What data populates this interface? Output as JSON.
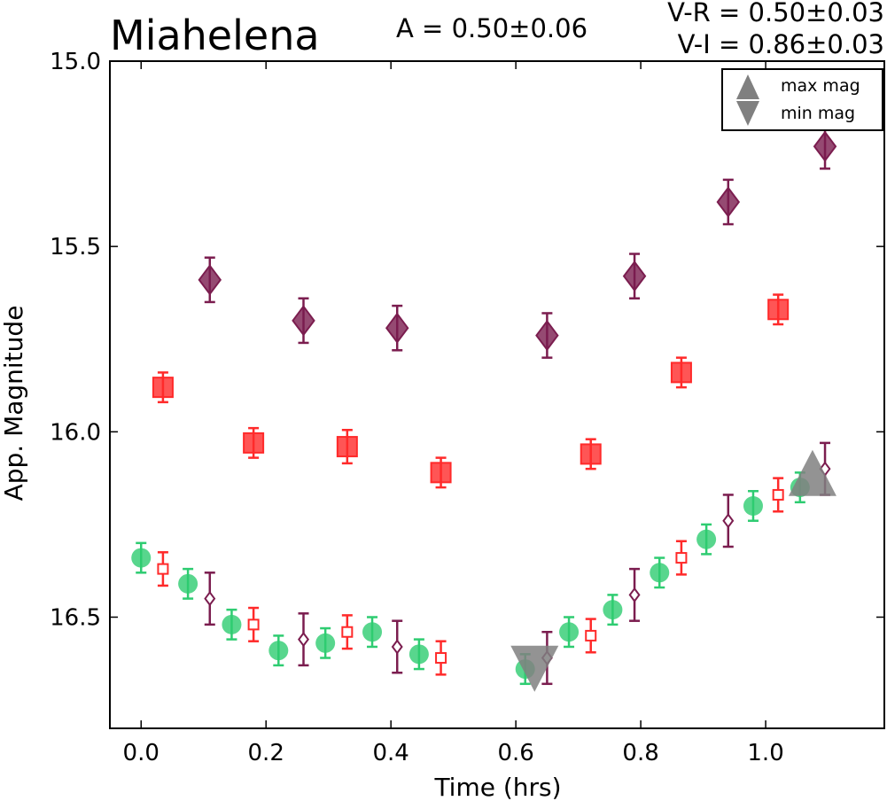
{
  "chart_data": {
    "type": "scatter",
    "title": "Miahelena",
    "annotations": {
      "amplitude": "A  = 0.50±0.06",
      "v_r": "V-R = 0.50±0.03",
      "v_i": "V-I  = 0.86±0.03"
    },
    "xlabel": "Time (hrs)",
    "ylabel": "App. Magnitude",
    "xlim": [
      -0.05,
      1.19
    ],
    "ylim": [
      16.8,
      15.0
    ],
    "y_inverted": true,
    "xticks": [
      0.0,
      0.2,
      0.4,
      0.6,
      0.8,
      1.0
    ],
    "xtick_labels": [
      "0.0",
      "0.2",
      "0.4",
      "0.6",
      "0.8",
      "1.0"
    ],
    "yticks": [
      15.0,
      15.5,
      16.0,
      16.5
    ],
    "ytick_labels": [
      "15.0",
      "15.5",
      "16.0",
      "16.5"
    ],
    "grid": false,
    "legend_position": "top-right",
    "legend": [
      {
        "label": "max mag",
        "marker": "triangle-up"
      },
      {
        "label": "min mag",
        "marker": "triangle-down"
      }
    ],
    "colors": {
      "green": "#2ecc71",
      "red": "#ff2a2a",
      "purple": "#7b1d4f",
      "gray": "#808080"
    },
    "series": [
      {
        "marker": "diamond",
        "filled": true,
        "color": "#7b1d4f",
        "points": [
          [
            0.11,
            15.59,
            0.06
          ],
          [
            0.26,
            15.7,
            0.06
          ],
          [
            0.41,
            15.72,
            0.06
          ],
          [
            0.65,
            15.74,
            0.06
          ],
          [
            0.79,
            15.58,
            0.06
          ],
          [
            0.94,
            15.38,
            0.06
          ],
          [
            1.095,
            15.23,
            0.06
          ]
        ]
      },
      {
        "marker": "square",
        "filled": true,
        "color": "#ff2a2a",
        "points": [
          [
            0.035,
            15.88,
            0.04
          ],
          [
            0.18,
            16.03,
            0.04
          ],
          [
            0.33,
            16.04,
            0.045
          ],
          [
            0.48,
            16.11,
            0.04
          ],
          [
            0.72,
            16.06,
            0.04
          ],
          [
            0.865,
            15.84,
            0.04
          ],
          [
            1.02,
            15.67,
            0.04
          ]
        ]
      },
      {
        "marker": "circle",
        "filled": true,
        "color": "#2ecc71",
        "points": [
          [
            0.0,
            16.34,
            0.04
          ],
          [
            0.075,
            16.41,
            0.04
          ],
          [
            0.145,
            16.52,
            0.04
          ],
          [
            0.22,
            16.59,
            0.04
          ],
          [
            0.295,
            16.57,
            0.04
          ],
          [
            0.37,
            16.54,
            0.04
          ],
          [
            0.445,
            16.6,
            0.04
          ],
          [
            0.615,
            16.64,
            0.04
          ],
          [
            0.685,
            16.54,
            0.04
          ],
          [
            0.755,
            16.48,
            0.04
          ],
          [
            0.83,
            16.38,
            0.04
          ],
          [
            0.905,
            16.29,
            0.04
          ],
          [
            0.98,
            16.2,
            0.04
          ],
          [
            1.055,
            16.15,
            0.04
          ]
        ]
      },
      {
        "marker": "square",
        "filled": false,
        "color": "#ff2a2a",
        "points": [
          [
            0.035,
            16.37,
            0.045
          ],
          [
            0.18,
            16.52,
            0.045
          ],
          [
            0.33,
            16.54,
            0.045
          ],
          [
            0.48,
            16.61,
            0.045
          ],
          [
            0.72,
            16.55,
            0.045
          ],
          [
            0.865,
            16.34,
            0.045
          ],
          [
            1.02,
            16.17,
            0.045
          ]
        ]
      },
      {
        "marker": "diamond",
        "filled": false,
        "color": "#7b1d4f",
        "points": [
          [
            0.11,
            16.45,
            0.07
          ],
          [
            0.26,
            16.56,
            0.07
          ],
          [
            0.41,
            16.58,
            0.07
          ],
          [
            0.65,
            16.61,
            0.07
          ],
          [
            0.79,
            16.44,
            0.07
          ],
          [
            0.94,
            16.24,
            0.07
          ],
          [
            1.095,
            16.1,
            0.07
          ]
        ]
      }
    ],
    "extrema": [
      {
        "type": "max",
        "marker": "triangle-up",
        "x": 1.075,
        "y": 16.13
      },
      {
        "type": "min",
        "marker": "triangle-down",
        "x": 0.63,
        "y": 16.62
      }
    ]
  }
}
